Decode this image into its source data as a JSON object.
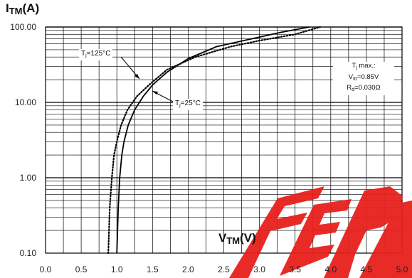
{
  "chart_data": {
    "type": "line",
    "title": "",
    "ylabel": {
      "main": "I",
      "sub": "TM",
      "unit": "(A)"
    },
    "xlabel": {
      "main": "V",
      "sub": "TM",
      "unit": "(V)"
    },
    "xlim": [
      0,
      5
    ],
    "ylim": [
      0.1,
      100
    ],
    "yscale": "log",
    "grid": true,
    "x_ticks": [
      "0.0",
      "0.5",
      "1.0",
      "1.5",
      "2.0",
      "2.5",
      "3.0",
      "3.5",
      "4.0",
      "4.5",
      "5.0"
    ],
    "y_ticks": [
      "0.10",
      "1.00",
      "10.00",
      "100.00"
    ],
    "series": [
      {
        "style": "solid",
        "x": [
          1.0,
          1.02,
          1.04,
          1.07,
          1.1,
          1.16,
          1.25,
          1.37,
          1.5,
          1.7,
          2.0,
          2.4,
          2.9,
          3.3,
          3.7
        ],
        "y": [
          0.1,
          0.4,
          1.0,
          2.0,
          3.0,
          5.0,
          8.0,
          12.0,
          17.0,
          25.0,
          38.0,
          55.0,
          70.0,
          85.0,
          100.0
        ]
      },
      {
        "style": "dotted",
        "x": [
          0.88,
          0.9,
          0.93,
          0.96,
          1.0,
          1.06,
          1.15,
          1.28,
          1.45,
          1.7,
          2.1,
          2.6,
          3.0,
          3.5,
          3.85
        ],
        "y": [
          0.1,
          0.4,
          1.0,
          2.0,
          3.0,
          5.0,
          8.0,
          12.0,
          17.0,
          27.0,
          40.0,
          55.0,
          66.0,
          80.0,
          100.0
        ]
      }
    ],
    "annotations": {
      "tj125": {
        "main": "T",
        "sub": "j",
        "rest": "=125°C"
      },
      "tj25": {
        "main": "T",
        "sub": "j",
        "rest": "=25°C"
      },
      "params": {
        "line1": {
          "main": "T",
          "sub": "j",
          "rest": " max.:"
        },
        "line2": {
          "main": "V",
          "sub": "t0",
          "rest": "=0.85V"
        },
        "line3": {
          "main": "R",
          "sub": "d",
          "rest": "=0.030Ω"
        }
      }
    }
  },
  "watermark": {
    "color": "#e8201c"
  }
}
